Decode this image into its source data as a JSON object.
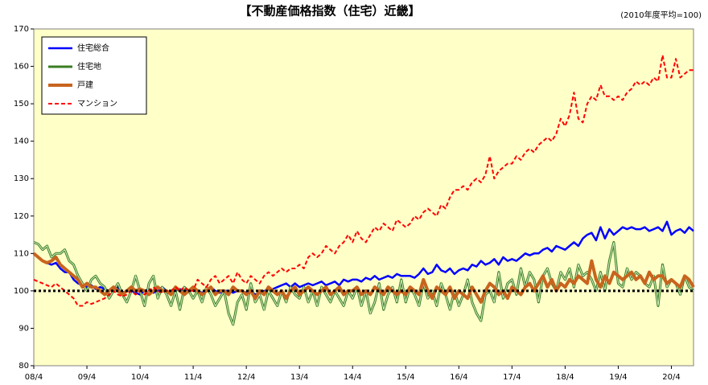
{
  "chart_data": {
    "type": "line",
    "title": "【不動産価格指数（住宅）近畿】",
    "subtitle": "(2010年度平均=100)",
    "categories": [
      "08/4",
      null,
      null,
      null,
      null,
      null,
      null,
      null,
      null,
      null,
      null,
      null,
      "09/4",
      null,
      null,
      null,
      null,
      null,
      null,
      null,
      null,
      null,
      null,
      null,
      "10/4",
      null,
      null,
      null,
      null,
      null,
      null,
      null,
      null,
      null,
      null,
      null,
      "11/4",
      null,
      null,
      null,
      null,
      null,
      null,
      null,
      null,
      null,
      null,
      null,
      "12/4",
      null,
      null,
      null,
      null,
      null,
      null,
      null,
      null,
      null,
      null,
      null,
      "13/4",
      null,
      null,
      null,
      null,
      null,
      null,
      null,
      null,
      null,
      null,
      null,
      "14/4",
      null,
      null,
      null,
      null,
      null,
      null,
      null,
      null,
      null,
      null,
      null,
      "15/4",
      null,
      null,
      null,
      null,
      null,
      null,
      null,
      null,
      null,
      null,
      null,
      "16/4",
      null,
      null,
      null,
      null,
      null,
      null,
      null,
      null,
      null,
      null,
      null,
      "17/4",
      null,
      null,
      null,
      null,
      null,
      null,
      null,
      null,
      null,
      null,
      null,
      "18/4",
      null,
      null,
      null,
      null,
      null,
      null,
      null,
      null,
      null,
      null,
      null,
      "19/4",
      null,
      null,
      null,
      null,
      null,
      null,
      null,
      null,
      null,
      null,
      null,
      "20/4",
      null,
      null,
      null,
      null,
      null
    ],
    "series": [
      {
        "name": "住宅総合",
        "color": "#0000ff",
        "width": 2.5,
        "dash": false,
        "values": [
          110,
          109,
          108,
          107.5,
          107,
          107.5,
          106,
          105,
          105,
          103,
          102,
          101.5,
          101,
          101.5,
          100.5,
          101,
          100.5,
          100,
          100.5,
          101,
          99.5,
          100,
          100,
          99.5,
          99,
          100,
          100.5,
          99.5,
          100,
          101,
          100,
          99.5,
          100,
          100.5,
          100,
          100,
          100.5,
          100,
          99.5,
          100,
          101,
          100,
          99.5,
          100,
          100,
          99.5,
          100,
          100,
          99.5,
          100,
          99,
          99.5,
          100,
          100,
          100.5,
          101,
          101.5,
          102,
          101,
          102,
          101,
          101.5,
          102,
          101.5,
          102,
          102.5,
          101.5,
          102,
          102.5,
          101.5,
          103,
          102.5,
          103,
          103,
          102.5,
          103.5,
          103,
          104,
          103,
          103.5,
          104,
          103.5,
          104.5,
          104,
          104,
          104,
          103.5,
          104.5,
          106,
          104.5,
          105,
          107,
          105.5,
          105,
          106,
          104.5,
          105.5,
          106,
          105.5,
          107,
          106.5,
          108,
          107,
          107.5,
          108.5,
          107,
          109,
          108,
          108.5,
          108,
          109,
          110,
          109.5,
          110,
          110,
          111,
          111.5,
          110.5,
          112,
          111.5,
          111,
          112,
          113,
          112,
          114,
          115,
          115.5,
          113.5,
          117,
          114,
          116.5,
          115,
          116,
          117,
          116.5,
          117,
          116.5,
          116.5,
          117,
          116,
          116.5,
          117,
          116,
          118.5,
          115,
          116,
          116.5,
          115.5,
          117,
          116
        ]
      },
      {
        "name": "住宅地",
        "color": "#3a7d22",
        "width": 3,
        "dash": false,
        "values": [
          113,
          112.5,
          111,
          112,
          109,
          110,
          110,
          111,
          108,
          107,
          104,
          102,
          100,
          103,
          104,
          102,
          101,
          98,
          100,
          102,
          99,
          97,
          100,
          104,
          100,
          96,
          102,
          104,
          98,
          101,
          99,
          96,
          100,
          95,
          101,
          100,
          98,
          100,
          97,
          101,
          99,
          96,
          98,
          100,
          94,
          91,
          97,
          99,
          95,
          102,
          97,
          99,
          95,
          100,
          98,
          96,
          100,
          97,
          101,
          99,
          98,
          101,
          97,
          100,
          96,
          101,
          99,
          97,
          100,
          98,
          96,
          100,
          98,
          101,
          96,
          100,
          94,
          97,
          102,
          95,
          99,
          101,
          97,
          103,
          97,
          101,
          99,
          96,
          102,
          98,
          100,
          96,
          102,
          99,
          95,
          100,
          96,
          99,
          103,
          97,
          94,
          92,
          99,
          100,
          97,
          105,
          98,
          102,
          103,
          99,
          106,
          101,
          105,
          103,
          97,
          104,
          106,
          102,
          100,
          105,
          103,
          106,
          101,
          107,
          104,
          105,
          103,
          100,
          105,
          100,
          108,
          113,
          102,
          101,
          106,
          103,
          105,
          104,
          102,
          101,
          104,
          96,
          107,
          101,
          103,
          102,
          99,
          104,
          101,
          100
        ]
      },
      {
        "name": "戸建",
        "color": "#c8641e",
        "width": 4,
        "dash": false,
        "values": [
          110,
          109,
          108,
          107.5,
          108,
          109,
          107,
          106,
          105,
          104,
          103,
          101,
          102,
          101,
          101,
          100,
          99,
          100,
          101,
          100,
          99,
          100,
          101,
          100,
          100.5,
          100,
          99,
          100,
          101,
          100,
          100,
          99,
          101,
          100,
          99,
          100,
          101,
          100,
          99,
          100,
          101,
          99,
          100,
          100,
          99,
          101,
          100,
          100,
          99,
          100,
          98,
          100,
          99,
          101,
          100,
          99,
          100,
          98,
          100,
          101,
          99,
          100,
          101,
          100,
          99,
          100,
          101,
          99,
          100,
          101,
          99,
          100,
          100,
          101,
          99,
          100,
          99,
          101,
          100,
          99,
          101,
          100,
          99,
          100,
          99,
          101,
          100,
          99,
          103,
          100,
          98,
          101,
          100,
          99,
          101,
          98,
          100,
          99,
          98,
          101,
          99,
          97,
          100,
          102,
          101,
          99,
          100,
          98,
          101,
          100,
          99,
          101,
          102,
          100,
          102,
          104,
          101,
          103,
          100,
          102,
          101,
          103,
          102,
          104,
          103,
          102,
          108,
          103,
          101,
          104,
          102,
          105,
          104,
          103,
          104,
          105,
          103,
          104,
          102,
          105,
          103,
          104,
          104,
          102,
          103,
          102,
          101,
          104,
          103,
          101
        ]
      },
      {
        "name": "マンション",
        "color": "#ff0000",
        "width": 2,
        "dash": true,
        "values": [
          103,
          102.5,
          102,
          101.5,
          101,
          102,
          101,
          100,
          99,
          98,
          96,
          96,
          97,
          96.5,
          97,
          97.5,
          98,
          99,
          100,
          99,
          98.5,
          99,
          100,
          99,
          100,
          99,
          100,
          101,
          100,
          99.5,
          100,
          100,
          101,
          100,
          101,
          100,
          100,
          103,
          102,
          101,
          103,
          104,
          102,
          103,
          104,
          102,
          105,
          103,
          102,
          104,
          103,
          102,
          104,
          105,
          104,
          105,
          106,
          105,
          106,
          106,
          107,
          106,
          109,
          110,
          109,
          110,
          112,
          111,
          110,
          112,
          113,
          115,
          113,
          116,
          114,
          113,
          115,
          117,
          116,
          118,
          117,
          116,
          119,
          118,
          117,
          118,
          120,
          119,
          121,
          122,
          121,
          120,
          123,
          122,
          125,
          127,
          127,
          128,
          127,
          129,
          130,
          129,
          131,
          136,
          130,
          132,
          133,
          134,
          134,
          136,
          135,
          137,
          138,
          137,
          139,
          140,
          141,
          140,
          142,
          146,
          144,
          147,
          153,
          146,
          145,
          150,
          152,
          151,
          155,
          152,
          152,
          151,
          152,
          151,
          153,
          154,
          156,
          155,
          156,
          155,
          157,
          156,
          163,
          157,
          157,
          162,
          157,
          158,
          159,
          159
        ]
      }
    ],
    "reference_line": 100,
    "ylim": [
      80,
      170
    ],
    "yticks": [
      80,
      90,
      100,
      110,
      120,
      130,
      140,
      150,
      160,
      170
    ],
    "grid": false,
    "legend": "upper-left",
    "background": "#ffffc8"
  }
}
